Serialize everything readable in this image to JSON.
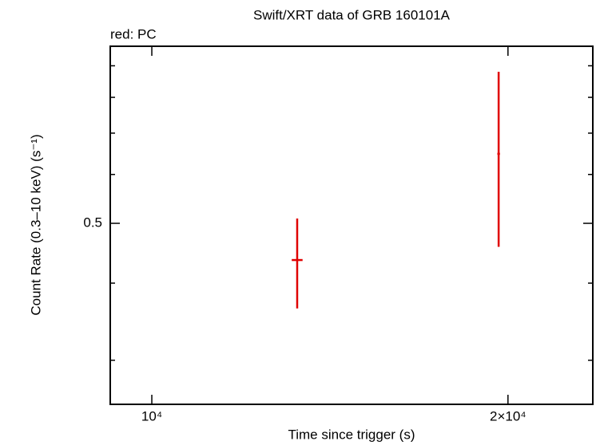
{
  "chart_data": {
    "type": "errorbar",
    "title": "Swift/XRT data of GRB 160101A",
    "annotation": "red: PC",
    "x_label": "Time since trigger (s)",
    "y_label": "Count Rate (0.3–10 keV) (s⁻¹)",
    "xlog": true,
    "ylog": true,
    "xlim": [
      9223,
      23590
    ],
    "ylim": [
      0.2545,
      0.968
    ],
    "xticks": [
      {
        "value": 10000,
        "label": "10⁴"
      },
      {
        "value": 20000,
        "label": "2×10⁴"
      }
    ],
    "yticks": [
      0.5
    ],
    "yminor_ticks": [
      0.3,
      0.4,
      0.6,
      0.7,
      0.8,
      0.9
    ],
    "series": [
      {
        "name": "PC",
        "color": "#e00000",
        "x": [
          13270,
          19640
        ],
        "xerr": [
          140,
          50
        ],
        "values": [
          0.436,
          0.648
        ],
        "yerr_plus": [
          0.073,
          0.232
        ],
        "yerr_minus": [
          0.072,
          0.19
        ]
      }
    ]
  }
}
